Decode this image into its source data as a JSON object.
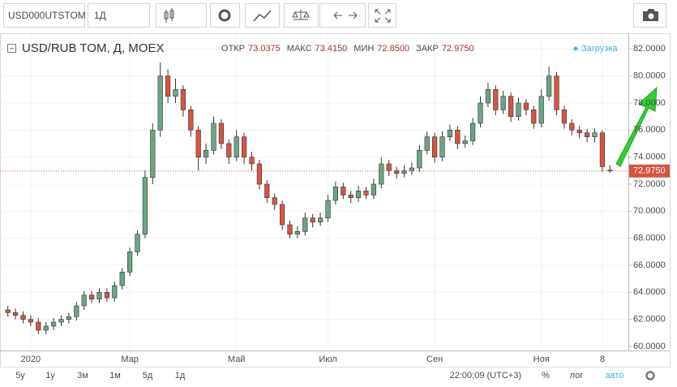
{
  "toolbar": {
    "symbol": "USD000UTSTOM",
    "interval": "1Д"
  },
  "footer": {
    "ranges": [
      "5у",
      "1у",
      "3м",
      "1м",
      "5д",
      "1д"
    ],
    "time": "22:00:09 (UTC+3)",
    "scales": [
      "%",
      "лог",
      "авто"
    ]
  },
  "chart_data": {
    "type": "candlestick",
    "title": "USD/RUB TOM, Д, MOEX",
    "status": "Загрузка",
    "header": {
      "labels": [
        "ОТКР",
        "МАКС",
        "МИН",
        "ЗАКР"
      ],
      "value_labels": [
        "73.0375",
        "73.4150",
        "72.8500",
        "72.9750"
      ]
    },
    "up_color": "#6ba583",
    "down_color": "#d75442",
    "last_price": 72.975,
    "last_price_label": "72.9750",
    "categories": [
      null,
      null,
      null,
      "2020",
      null,
      null,
      null,
      null,
      null,
      null,
      null,
      null,
      null,
      null,
      null,
      null,
      "Мар",
      null,
      null,
      null,
      null,
      null,
      null,
      null,
      null,
      null,
      null,
      null,
      null,
      null,
      "Май",
      null,
      null,
      null,
      null,
      null,
      null,
      null,
      null,
      null,
      null,
      null,
      "Июл",
      null,
      null,
      null,
      null,
      null,
      null,
      null,
      null,
      null,
      null,
      null,
      null,
      null,
      "Сен",
      null,
      null,
      null,
      null,
      null,
      null,
      null,
      null,
      null,
      null,
      null,
      null,
      null,
      "Ноя",
      null,
      null,
      null,
      null,
      null,
      null,
      null,
      "8",
      null
    ],
    "open": [
      62.7,
      62.5,
      62.3,
      62.0,
      61.8,
      61.2,
      61.5,
      61.8,
      62.0,
      62.2,
      63.0,
      63.8,
      63.5,
      64.0,
      63.6,
      64.5,
      65.5,
      67.0,
      68.3,
      72.5,
      76.0,
      80.0,
      78.5,
      79.0,
      77.5,
      76.0,
      74.0,
      74.5,
      76.5,
      75.0,
      74.0,
      75.5,
      74.0,
      73.5,
      72.0,
      71.0,
      70.5,
      69.0,
      68.3,
      68.5,
      69.5,
      69.2,
      69.5,
      70.8,
      71.8,
      71.2,
      71.0,
      71.5,
      71.2,
      72.0,
      73.5,
      73.0,
      72.8,
      73.0,
      73.2,
      74.5,
      75.5,
      74.0,
      75.5,
      76.0,
      75.0,
      75.2,
      76.5,
      78.0,
      79.0,
      77.5,
      78.5,
      77.0,
      78.0,
      77.5,
      76.5,
      78.5,
      80.0,
      77.5,
      76.5,
      76.0,
      75.8,
      75.5,
      75.8,
      73.0375
    ],
    "high": [
      63.0,
      62.8,
      62.6,
      62.3,
      62.1,
      61.8,
      62.1,
      62.3,
      62.5,
      63.3,
      64.1,
      64.1,
      64.3,
      64.3,
      64.8,
      65.8,
      67.3,
      68.6,
      73.0,
      76.5,
      81.0,
      80.5,
      79.8,
      79.3,
      77.8,
      76.3,
      75.0,
      77.0,
      76.8,
      75.3,
      76.0,
      75.8,
      74.4,
      73.8,
      72.3,
      71.3,
      70.8,
      69.3,
      68.9,
      69.9,
      69.8,
      69.9,
      71.2,
      72.2,
      72.1,
      71.5,
      71.9,
      71.8,
      72.4,
      74.0,
      73.8,
      73.3,
      73.4,
      73.6,
      74.9,
      75.9,
      75.8,
      75.9,
      76.4,
      76.3,
      75.6,
      76.9,
      78.5,
      79.5,
      79.3,
      78.9,
      78.8,
      78.4,
      78.3,
      77.8,
      79.0,
      80.7,
      80.3,
      77.8,
      76.8,
      76.3,
      76.1,
      76.1,
      76.0,
      73.415
    ],
    "low": [
      62.2,
      62.0,
      61.7,
      61.5,
      60.9,
      60.9,
      61.2,
      61.5,
      61.7,
      61.9,
      62.7,
      63.2,
      63.2,
      63.3,
      63.3,
      64.2,
      65.2,
      66.7,
      68.0,
      72.0,
      75.5,
      78.0,
      78.0,
      77.0,
      75.5,
      73.0,
      73.5,
      74.2,
      74.6,
      73.5,
      73.7,
      73.5,
      73.0,
      71.6,
      70.6,
      70.1,
      68.6,
      68.0,
      68.0,
      68.2,
      68.8,
      68.9,
      69.2,
      70.5,
      70.9,
      70.6,
      70.7,
      70.9,
      70.9,
      71.7,
      72.6,
      72.4,
      72.5,
      72.7,
      72.9,
      74.2,
      73.6,
      73.7,
      75.2,
      74.6,
      74.7,
      74.9,
      76.2,
      77.7,
      77.1,
      77.2,
      76.6,
      76.7,
      77.1,
      76.1,
      76.2,
      78.2,
      77.1,
      76.1,
      75.6,
      75.4,
      75.1,
      75.1,
      72.9,
      72.85
    ],
    "close": [
      62.5,
      62.3,
      62.0,
      61.8,
      61.2,
      61.5,
      61.8,
      62.0,
      62.2,
      63.0,
      63.8,
      63.5,
      64.0,
      63.6,
      64.5,
      65.5,
      67.0,
      68.3,
      72.5,
      76.0,
      80.0,
      78.5,
      79.0,
      77.5,
      76.0,
      74.0,
      74.5,
      76.5,
      75.0,
      74.0,
      75.5,
      74.0,
      73.5,
      72.0,
      71.0,
      70.5,
      69.0,
      68.3,
      68.5,
      69.5,
      69.2,
      69.5,
      70.8,
      71.8,
      71.2,
      71.0,
      71.5,
      71.2,
      72.0,
      73.5,
      73.0,
      72.8,
      73.0,
      73.2,
      74.5,
      75.5,
      74.0,
      75.5,
      76.0,
      75.0,
      75.2,
      76.5,
      78.0,
      79.0,
      77.5,
      78.5,
      77.0,
      78.0,
      77.5,
      76.5,
      78.5,
      80.0,
      77.5,
      76.5,
      76.0,
      75.8,
      75.5,
      75.8,
      73.3,
      72.975
    ],
    "ylim": [
      59.7,
      83.1
    ],
    "yticks": [
      {
        "value": 60,
        "label": "60.0000"
      },
      {
        "value": 62,
        "label": "62.0000"
      },
      {
        "value": 64,
        "label": "64.0000"
      },
      {
        "value": 66,
        "label": "66.0000"
      },
      {
        "value": 68,
        "label": "68.0000"
      },
      {
        "value": 70,
        "label": "70.0000"
      },
      {
        "value": 72,
        "label": "72.0000"
      },
      {
        "value": 74,
        "label": "74.0000"
      },
      {
        "value": 76,
        "label": "76.0000"
      },
      {
        "value": 78,
        "label": "78.0000"
      },
      {
        "value": 80,
        "label": "80.0000"
      },
      {
        "value": 82,
        "label": "82.0000"
      }
    ],
    "grid": true
  }
}
